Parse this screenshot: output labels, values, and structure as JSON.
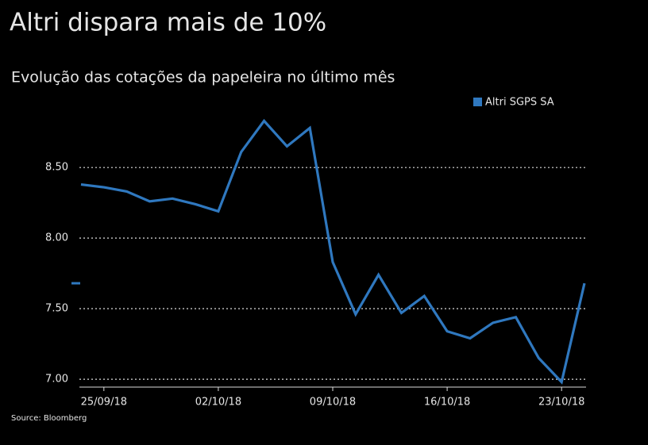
{
  "chart_data": {
    "type": "line",
    "title": "Altri dispara mais de 10%",
    "subtitle": "Evolução das cotações da papeleira no último mês",
    "source": "Source: Bloomberg",
    "categories": [
      null,
      "25/09/18",
      null,
      null,
      null,
      null,
      "02/10/18",
      null,
      null,
      null,
      null,
      "09/10/18",
      null,
      null,
      null,
      null,
      "16/10/18",
      null,
      null,
      null,
      null,
      "23/10/18",
      null
    ],
    "series": [
      {
        "name": "Altri SGPS SA",
        "color": "#2f78bf",
        "values": [
          8.38,
          8.36,
          8.33,
          8.26,
          8.28,
          8.24,
          8.19,
          8.61,
          8.83,
          8.65,
          8.78,
          7.83,
          7.46,
          7.74,
          7.47,
          7.59,
          7.34,
          7.29,
          7.4,
          7.44,
          7.15,
          6.98,
          7.68
        ]
      }
    ],
    "ylim": [
      6.95,
      8.9
    ],
    "yticks": [
      {
        "value": 7,
        "label": "7.00"
      },
      {
        "value": 7.5,
        "label": "7.50"
      },
      {
        "value": 8,
        "label": "8.00"
      },
      {
        "value": 8.5,
        "label": "8.50"
      }
    ],
    "grid": true,
    "legend": "top-right"
  }
}
